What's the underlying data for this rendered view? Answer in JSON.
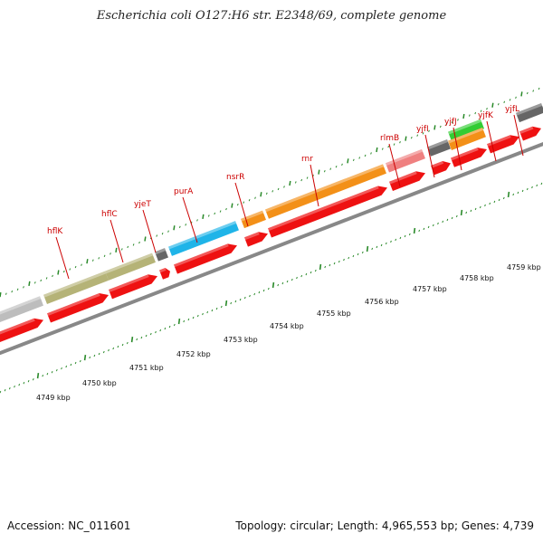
{
  "title": "Escherichia coli O127:H6 str. E2348/69, complete genome",
  "footer": {
    "accession": "Accession: NC_011601",
    "summary": "Topology: circular; Length: 4,965,553 bp; Genes: 4,739"
  },
  "colors": {
    "backbone": "#888888",
    "cds": "#ee1111",
    "scale_tick": "#2a8a2a",
    "label": "#cc0000"
  },
  "scale_labels": [
    "4749 kbp",
    "4750 kbp",
    "4751 kbp",
    "4752 kbp",
    "4753 kbp",
    "4754 kbp",
    "4755 kbp",
    "4756 kbp",
    "4757 kbp",
    "4758 kbp",
    "4759 kbp"
  ],
  "gene_labels": [
    "hflK",
    "hflC",
    "yjeT",
    "purA",
    "nsrR",
    "rnr",
    "rlmB",
    "yjfI",
    "yjfJ",
    "yjfK",
    "yjfL"
  ]
}
